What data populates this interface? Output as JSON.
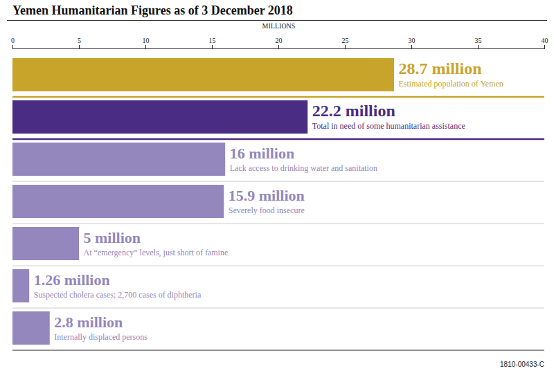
{
  "chart_data": {
    "type": "bar",
    "orientation": "horizontal",
    "title": "Yemen Humanitarian Figures as of 3 December 2018",
    "x_label": "MILLIONS",
    "categories": [
      "Estimated population of Yemen",
      "Total in need of some humanitarian assistance",
      "Lack access to drinking water and sanitation",
      "Severely food insecure",
      "At “emergency” levels, just short of famine",
      "Suspected cholera cases; 2,700 cases of diphtheria",
      "Internally displaced persons"
    ],
    "values": [
      28.7,
      22.2,
      16,
      15.9,
      5,
      1.26,
      2.8
    ],
    "value_labels": [
      "28.7 million",
      "22.2 million",
      "16 million",
      "15.9 million",
      "5 million",
      "1.26 million",
      "2.8 million"
    ],
    "colors": [
      "#c9a42a",
      "#4a2c82",
      "#9487bd",
      "#9487bd",
      "#9487bd",
      "#9487bd",
      "#9487bd"
    ],
    "xlim": [
      0,
      40
    ],
    "xticks": [
      0,
      5,
      10,
      15,
      20,
      25,
      30,
      35,
      40
    ],
    "data_labels": true,
    "tick_labels": "x",
    "grid": false,
    "annotations": [
      "1810-00433-C"
    ]
  }
}
